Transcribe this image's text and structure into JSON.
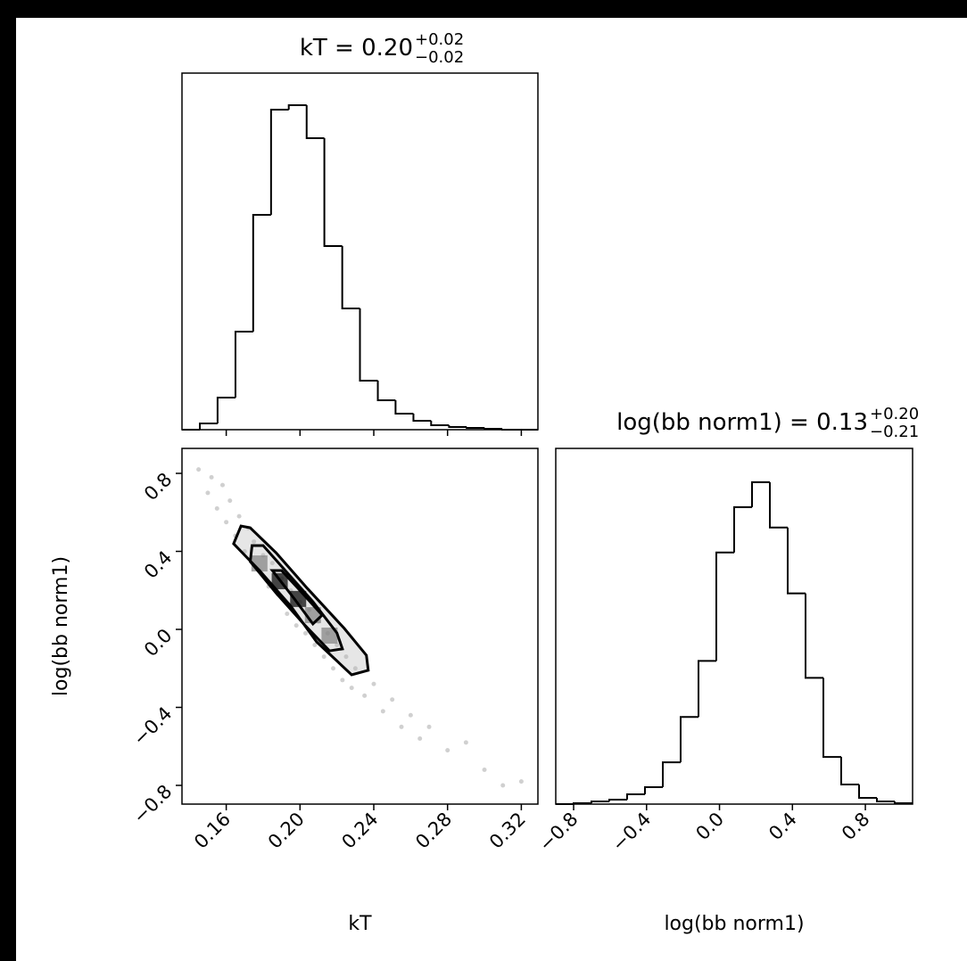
{
  "chart_data": [
    {
      "type": "histogram",
      "title": {
        "text": "kT = 0.20",
        "upper": "+0.02",
        "lower": "−0.02"
      },
      "bins": [
        0.136,
        0.1457,
        0.1553,
        0.165,
        0.1746,
        0.1843,
        0.1939,
        0.2036,
        0.2132,
        0.2229,
        0.2325,
        0.2422,
        0.2518,
        0.2615,
        0.2711,
        0.2808,
        0.2904,
        0.3001,
        0.3097,
        0.3194,
        0.329
      ],
      "values": [
        0,
        7,
        36,
        110,
        241,
        359,
        364,
        327,
        206,
        136,
        55,
        33,
        18,
        10,
        5,
        3,
        2,
        1,
        0,
        0
      ],
      "xlim": [
        0.136,
        0.329
      ],
      "ylim": [
        0,
        400
      ],
      "color": "#000000"
    },
    {
      "type": "scatter",
      "xlabel": "kT",
      "ylabel": "log(bb norm1)",
      "xlim": [
        0.136,
        0.329
      ],
      "ylim": [
        -0.896,
        0.928
      ],
      "xticks": [
        0.16,
        {
          "value": 0.2,
          "label": "0.20"
        },
        0.24,
        0.28,
        0.32
      ],
      "yticks": [
        {
          "value": -0.8,
          "label": "−0.8"
        },
        {
          "value": -0.4,
          "label": "−0.4"
        },
        {
          "value": 0,
          "label": "0.0"
        },
        0.4,
        0.8
      ],
      "x": [
        0.145,
        0.15,
        0.152,
        0.155,
        0.158,
        0.16,
        0.162,
        0.165,
        0.167,
        0.17,
        0.172,
        0.175,
        0.178,
        0.18,
        0.183,
        0.185,
        0.188,
        0.19,
        0.193,
        0.195,
        0.198,
        0.2,
        0.203,
        0.205,
        0.208,
        0.21,
        0.213,
        0.215,
        0.218,
        0.22,
        0.223,
        0.225,
        0.228,
        0.23,
        0.235,
        0.24,
        0.245,
        0.25,
        0.255,
        0.26,
        0.265,
        0.27,
        0.28,
        0.29,
        0.3,
        0.31,
        0.32
      ],
      "y": [
        0.82,
        0.7,
        0.78,
        0.62,
        0.74,
        0.55,
        0.66,
        0.48,
        0.58,
        0.4,
        0.52,
        0.45,
        0.3,
        0.38,
        0.22,
        0.34,
        0.18,
        0.26,
        0.08,
        0.2,
        0.02,
        0.14,
        -0.02,
        0.1,
        -0.08,
        0.04,
        -0.14,
        -0.02,
        -0.2,
        -0.08,
        -0.26,
        -0.14,
        -0.3,
        -0.2,
        -0.34,
        -0.28,
        -0.42,
        -0.36,
        -0.5,
        -0.44,
        -0.56,
        -0.5,
        -0.62,
        -0.58,
        -0.72,
        -0.8,
        -0.78
      ],
      "color": "#b0b0b0",
      "contours": [
        {
          "x": [
            0.168,
            0.164,
            0.178,
            0.195,
            0.209,
            0.228,
            0.237,
            0.236,
            0.224,
            0.204,
            0.187,
            0.173
          ],
          "y": [
            0.53,
            0.439,
            0.302,
            0.119,
            -0.064,
            -0.233,
            -0.21,
            -0.133,
            0.005,
            0.21,
            0.393,
            0.521
          ]
        },
        {
          "x": [
            0.174,
            0.173,
            0.187,
            0.202,
            0.216,
            0.223,
            0.22,
            0.207,
            0.192,
            0.18
          ],
          "y": [
            0.43,
            0.348,
            0.187,
            0.028,
            -0.11,
            -0.1,
            -0.018,
            0.142,
            0.302,
            0.43
          ]
        },
        {
          "x": [
            0.185,
            0.197,
            0.207,
            0.212,
            0.199,
            0.19
          ],
          "y": [
            0.302,
            0.156,
            0.028,
            0.073,
            0.21,
            0.302
          ]
        }
      ],
      "density": {
        "x": [
          0.189,
          0.199,
          0.178,
          0.207,
          0.216
        ],
        "y": [
          0.247,
          0.156,
          0.338,
          0.073,
          -0.032
        ],
        "values": [
          1,
          1,
          0.5,
          0.5,
          0.5
        ]
      }
    },
    {
      "type": "histogram",
      "title": {
        "text": "log(bb norm1) = 0.13",
        "upper": "+0.20",
        "lower": "−0.21"
      },
      "xlabel": "log(bb norm1)",
      "bins": [
        -0.898,
        -0.8002,
        -0.7023,
        -0.6045,
        -0.5066,
        -0.4088,
        -0.3109,
        -0.2131,
        -0.1152,
        -0.0174,
        0.0805,
        0.1784,
        0.2762,
        0.3741,
        0.4719,
        0.5698,
        0.6676,
        0.7655,
        0.8633,
        0.9612,
        1.059
      ],
      "values": [
        0,
        1,
        3,
        5,
        11,
        19,
        47,
        98,
        161,
        283,
        334,
        362,
        311,
        237,
        142,
        53,
        22,
        7,
        3,
        1
      ],
      "xlim": [
        -0.898,
        1.059
      ],
      "ylim": [
        0,
        400
      ],
      "xticks": [
        {
          "value": -0.8,
          "label": "−0.8"
        },
        {
          "value": -0.4,
          "label": "−0.4"
        },
        {
          "value": 0,
          "label": "0.0"
        },
        0.4,
        0.8
      ],
      "color": "#000000"
    }
  ]
}
